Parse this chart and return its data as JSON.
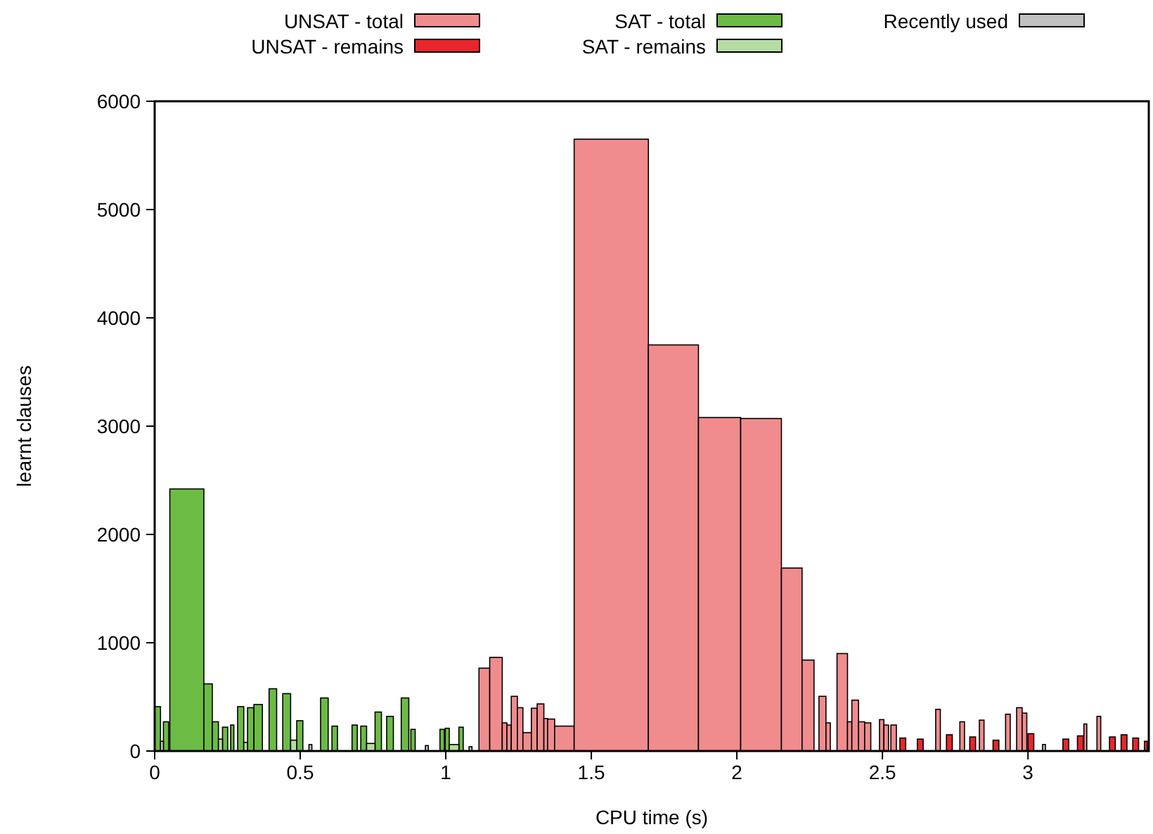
{
  "chart_data": {
    "type": "histogram",
    "xlabel": "CPU time (s)",
    "ylabel": "learnt clauses",
    "xlim": [
      0,
      3.415
    ],
    "ylim": [
      0,
      6000
    ],
    "xticks": [
      0,
      0.5,
      1,
      1.5,
      2,
      2.5,
      3
    ],
    "yticks": [
      0,
      1000,
      2000,
      3000,
      4000,
      5000,
      6000
    ],
    "legend": "top",
    "bins": [
      0,
      0.02,
      0.03,
      0.048,
      0.052,
      0.169,
      0.198,
      0.219,
      0.233,
      0.251,
      0.261,
      0.272,
      0.285,
      0.306,
      0.319,
      0.341,
      0.37,
      0.393,
      0.419,
      0.44,
      0.467,
      0.488,
      0.509,
      0.53,
      0.54,
      0.57,
      0.596,
      0.609,
      0.628,
      0.678,
      0.696,
      0.708,
      0.728,
      0.757,
      0.779,
      0.797,
      0.82,
      0.847,
      0.873,
      0.88,
      0.895,
      0.93,
      0.94,
      0.98,
      0.995,
      0.998,
      1.012,
      1.045,
      1.06,
      1.08,
      1.09,
      1.114,
      1.151,
      1.194,
      1.21,
      1.225,
      1.246,
      1.265,
      1.294,
      1.314,
      1.337,
      1.35,
      1.374,
      1.441,
      1.696,
      1.868,
      2.013,
      2.153,
      2.224,
      2.265,
      2.282,
      2.306,
      2.321,
      2.344,
      2.38,
      2.395,
      2.418,
      2.439,
      2.46,
      2.49,
      2.505,
      2.521,
      2.529,
      2.548,
      2.56,
      2.58,
      2.62,
      2.64,
      2.683,
      2.699,
      2.72,
      2.74,
      2.766,
      2.782,
      2.8,
      2.82,
      2.833,
      2.849,
      2.88,
      2.9,
      2.923,
      2.939,
      2.961,
      2.98,
      2.996,
      3.0,
      3.02,
      3.05,
      3.06,
      3.12,
      3.14,
      3.17,
      3.19,
      3.192,
      3.202,
      3.237,
      3.25,
      3.28,
      3.3,
      3.32,
      3.34,
      3.36,
      3.38,
      3.4,
      3.41
    ],
    "series": [
      {
        "name": "UNSAT - total",
        "color": "#f08c8e",
        "values": [
          null,
          null,
          null,
          null,
          null,
          null,
          null,
          null,
          null,
          null,
          null,
          null,
          null,
          null,
          null,
          null,
          null,
          null,
          null,
          null,
          null,
          null,
          null,
          null,
          null,
          null,
          null,
          null,
          null,
          null,
          null,
          null,
          null,
          null,
          null,
          null,
          null,
          null,
          null,
          null,
          null,
          null,
          null,
          null,
          null,
          null,
          null,
          null,
          null,
          null,
          null,
          765,
          865,
          260,
          240,
          505,
          400,
          170,
          395,
          435,
          300,
          295,
          230,
          5650,
          3750,
          3080,
          3070,
          1690,
          840,
          null,
          505,
          260,
          null,
          900,
          270,
          470,
          270,
          260,
          null,
          290,
          240,
          null,
          240,
          null,
          null,
          null,
          null,
          null,
          385,
          null,
          null,
          null,
          270,
          null,
          null,
          null,
          285,
          null,
          null,
          null,
          340,
          null,
          400,
          350,
          null,
          null,
          null,
          null,
          null,
          null,
          null,
          null,
          null,
          250,
          null,
          320,
          null,
          null,
          null,
          null,
          null,
          null,
          null,
          null
        ]
      },
      {
        "name": "UNSAT - remains",
        "color": "#e8262b",
        "values": [
          null,
          null,
          null,
          null,
          null,
          null,
          null,
          null,
          null,
          null,
          null,
          null,
          null,
          null,
          null,
          null,
          null,
          null,
          null,
          null,
          null,
          null,
          null,
          null,
          null,
          null,
          null,
          null,
          null,
          null,
          null,
          null,
          null,
          null,
          null,
          null,
          null,
          null,
          null,
          null,
          null,
          null,
          null,
          null,
          null,
          null,
          null,
          null,
          null,
          null,
          null,
          null,
          null,
          null,
          null,
          null,
          null,
          null,
          null,
          null,
          null,
          null,
          null,
          null,
          null,
          null,
          null,
          null,
          null,
          null,
          null,
          null,
          null,
          null,
          null,
          null,
          null,
          null,
          null,
          null,
          null,
          null,
          null,
          null,
          120,
          null,
          110,
          null,
          null,
          null,
          150,
          null,
          null,
          null,
          130,
          null,
          null,
          null,
          100,
          null,
          null,
          null,
          null,
          null,
          null,
          160,
          null,
          null,
          null,
          110,
          null,
          140,
          null,
          null,
          null,
          null,
          null,
          130,
          null,
          150,
          null,
          120,
          null,
          90
        ]
      },
      {
        "name": "SAT - total",
        "color": "#6cbb45",
        "values": [
          410,
          null,
          270,
          null,
          2420,
          620,
          270,
          null,
          220,
          null,
          240,
          null,
          410,
          null,
          400,
          430,
          null,
          575,
          null,
          530,
          null,
          280,
          null,
          null,
          null,
          490,
          null,
          230,
          null,
          240,
          null,
          230,
          null,
          360,
          null,
          320,
          null,
          490,
          null,
          200,
          null,
          null,
          null,
          200,
          null,
          210,
          null,
          220,
          null,
          null,
          null,
          null,
          null,
          null,
          null,
          null,
          null,
          null,
          null,
          null,
          null,
          null,
          null,
          null,
          null,
          null,
          null,
          null,
          null,
          null,
          null,
          null,
          null,
          null,
          null,
          null,
          null,
          null,
          null,
          null,
          null,
          null,
          null,
          null,
          null,
          null,
          null,
          null,
          null,
          null,
          null,
          null,
          null,
          null,
          null,
          null,
          null,
          null,
          null,
          null,
          null,
          null,
          null,
          null,
          null,
          null,
          null,
          null,
          null,
          null,
          null,
          null,
          null,
          null,
          null,
          null,
          null,
          null,
          null,
          null,
          null,
          null,
          null,
          null
        ]
      },
      {
        "name": "SAT - remains",
        "color": "#b6dca4",
        "values": [
          null,
          90,
          null,
          null,
          null,
          null,
          null,
          110,
          null,
          null,
          null,
          null,
          null,
          80,
          null,
          null,
          null,
          null,
          null,
          null,
          100,
          null,
          null,
          null,
          null,
          null,
          null,
          null,
          null,
          null,
          null,
          null,
          70,
          null,
          null,
          null,
          null,
          null,
          null,
          null,
          null,
          null,
          null,
          null,
          null,
          null,
          60,
          null,
          null,
          null,
          null,
          null,
          null,
          null,
          null,
          null,
          null,
          null,
          null,
          null,
          null,
          null,
          null,
          null,
          null,
          null,
          null,
          null,
          null,
          null,
          null,
          null,
          null,
          null,
          null,
          null,
          null,
          null,
          null,
          null,
          null,
          null,
          null,
          null,
          null,
          null,
          null,
          null,
          null,
          null,
          null,
          null,
          null,
          null,
          null,
          null,
          null,
          null,
          null,
          null,
          null,
          null,
          null,
          null,
          null,
          null,
          null,
          null,
          null,
          null,
          null,
          null,
          null,
          null,
          null,
          null,
          null,
          null,
          null,
          null,
          null,
          null,
          null,
          null
        ]
      },
      {
        "name": "Recently used",
        "color": "#c0c0c0",
        "values": [
          null,
          null,
          null,
          null,
          null,
          null,
          null,
          null,
          null,
          null,
          null,
          null,
          null,
          null,
          null,
          null,
          null,
          null,
          null,
          null,
          null,
          null,
          null,
          60,
          null,
          null,
          null,
          null,
          null,
          null,
          null,
          null,
          null,
          null,
          null,
          null,
          null,
          null,
          null,
          null,
          null,
          50,
          null,
          null,
          null,
          null,
          null,
          null,
          null,
          40,
          null,
          null,
          null,
          null,
          null,
          null,
          null,
          null,
          null,
          null,
          null,
          null,
          null,
          null,
          null,
          null,
          null,
          null,
          null,
          null,
          null,
          null,
          null,
          null,
          null,
          null,
          null,
          null,
          null,
          null,
          null,
          null,
          null,
          null,
          null,
          null,
          null,
          null,
          null,
          null,
          null,
          null,
          null,
          null,
          null,
          null,
          null,
          null,
          null,
          null,
          null,
          null,
          null,
          null,
          null,
          null,
          null,
          60,
          null,
          null,
          null,
          null,
          null,
          null,
          null,
          null,
          null,
          null,
          null,
          null,
          null,
          null,
          null,
          null
        ]
      }
    ]
  }
}
